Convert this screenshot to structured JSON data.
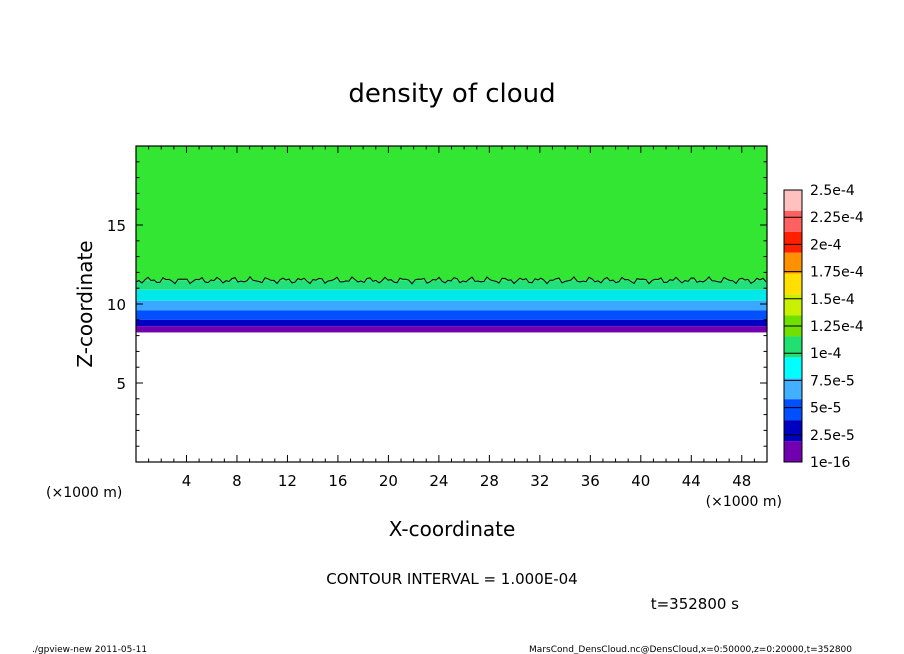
{
  "chart_data": {
    "type": "heatmap",
    "title": "density of cloud",
    "xlabel": "X-coordinate",
    "ylabel": "Z-coordinate",
    "x_unit": "(×1000 m)",
    "y_unit": "(×1000 m)",
    "xlim": [
      0,
      50
    ],
    "ylim": [
      0,
      20
    ],
    "x_ticks": [
      4,
      8,
      12,
      16,
      20,
      24,
      28,
      32,
      36,
      40,
      44,
      48
    ],
    "y_ticks": [
      5,
      10,
      15
    ],
    "colorbar": {
      "levels": [
        "2.5e-4",
        "2.25e-4",
        "2e-4",
        "1.75e-4",
        "1.5e-4",
        "1.25e-4",
        "1e-4",
        "7.5e-5",
        "5e-5",
        "2.5e-5",
        "1e-16"
      ],
      "colors": [
        "#ffc0c0",
        "#ff6060",
        "#ff2000",
        "#ff9000",
        "#ffe000",
        "#c8f000",
        "#70e000",
        "#20e070",
        "#00ffff",
        "#40b0ff",
        "#0050ff",
        "#0000c0",
        "#7000b0"
      ]
    },
    "cloud_layers": [
      {
        "z_bottom": 11.5,
        "z_top": 20,
        "color": "#33e633"
      },
      {
        "z_bottom": 10.9,
        "z_top": 11.5,
        "color": "#22e07a"
      },
      {
        "z_bottom": 10.2,
        "z_top": 10.9,
        "color": "#00e8e8"
      },
      {
        "z_bottom": 9.6,
        "z_top": 10.2,
        "color": "#3aa8ff"
      },
      {
        "z_bottom": 9.0,
        "z_top": 9.6,
        "color": "#0050ff"
      },
      {
        "z_bottom": 8.6,
        "z_top": 9.0,
        "color": "#0000c0"
      },
      {
        "z_bottom": 8.2,
        "z_top": 8.6,
        "color": "#7000b0"
      }
    ],
    "contour_level_z": 11.5
  },
  "contour_interval": "CONTOUR INTERVAL = 1.000E-04",
  "time_label": "t=352800 s",
  "footer_left": "./gpview-new  2011-05-11",
  "footer_right": "MarsCond_DensCloud.nc@DensCloud,x=0:50000,z=0:20000,t=352800"
}
